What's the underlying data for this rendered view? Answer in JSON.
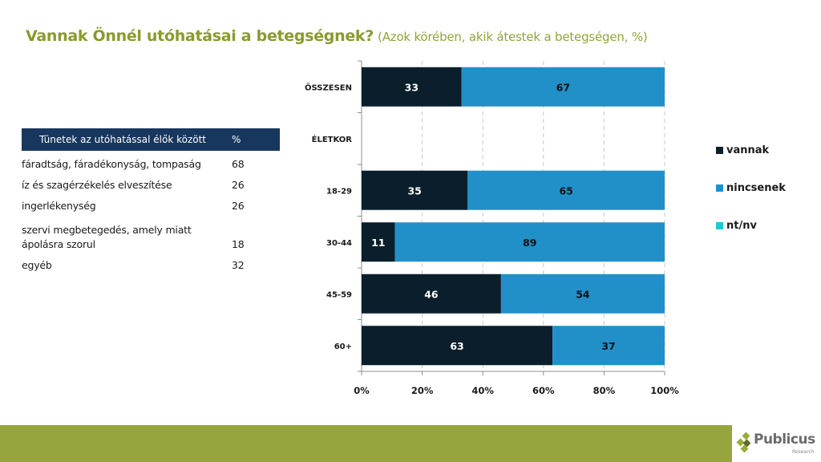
{
  "title": {
    "main": "Vannak Önnél utóhatásai a betegségnek?",
    "sub": "(Azok körében, akik átestek a betegségen, %)"
  },
  "symptoms_table": {
    "header": {
      "label": "Tünetek az utóhatással élők között",
      "value": "%"
    },
    "rows": [
      {
        "label_lines": [
          "fáradtság, fáradékonyság, tompaság"
        ],
        "value": "68"
      },
      {
        "label_lines": [
          "íz és szagérzékelés elveszítése"
        ],
        "value": "26"
      },
      {
        "label_lines": [
          "ingerlékenység"
        ],
        "value": "26"
      },
      {
        "label_lines": [
          "szervi megbetegedés, amely miatt",
          "ápolásra szorul"
        ],
        "value": "18"
      },
      {
        "label_lines": [
          "egyéb"
        ],
        "value": "32"
      }
    ]
  },
  "colors": {
    "title": "#8a9a2e",
    "table_header_bg": "#17375e",
    "vannak": "#0a1f2b",
    "nincsenek": "#2290c8",
    "ntnv": "#1ec8d8",
    "footer": "#98a43e"
  },
  "chart_data": {
    "type": "bar",
    "orientation": "horizontal",
    "stacked": true,
    "percent_stacked": true,
    "title": "",
    "xlabel": "",
    "ylabel": "",
    "xlim": [
      0,
      100
    ],
    "x_ticks": [
      "0%",
      "20%",
      "40%",
      "60%",
      "80%",
      "100%"
    ],
    "grid": "vertical dashed",
    "legend_position": "right",
    "categories": [
      "ÖSSZESEN",
      "ÉLETKOR",
      "18-29",
      "30-44",
      "45-59",
      "60+"
    ],
    "series": [
      {
        "name": "vannak",
        "color": "#0a1f2b",
        "label_color": "#ffffff",
        "values": [
          33,
          null,
          35,
          11,
          46,
          63
        ]
      },
      {
        "name": "nincsenek",
        "color": "#2290c8",
        "label_color": "#111111",
        "values": [
          67,
          null,
          65,
          89,
          54,
          37
        ]
      },
      {
        "name": "nt/nv",
        "color": "#1ec8d8",
        "label_color": "#111111",
        "values": [
          0,
          null,
          0,
          0,
          0,
          0
        ]
      }
    ]
  },
  "logo": {
    "name": "Publicus",
    "sub": "Research"
  }
}
